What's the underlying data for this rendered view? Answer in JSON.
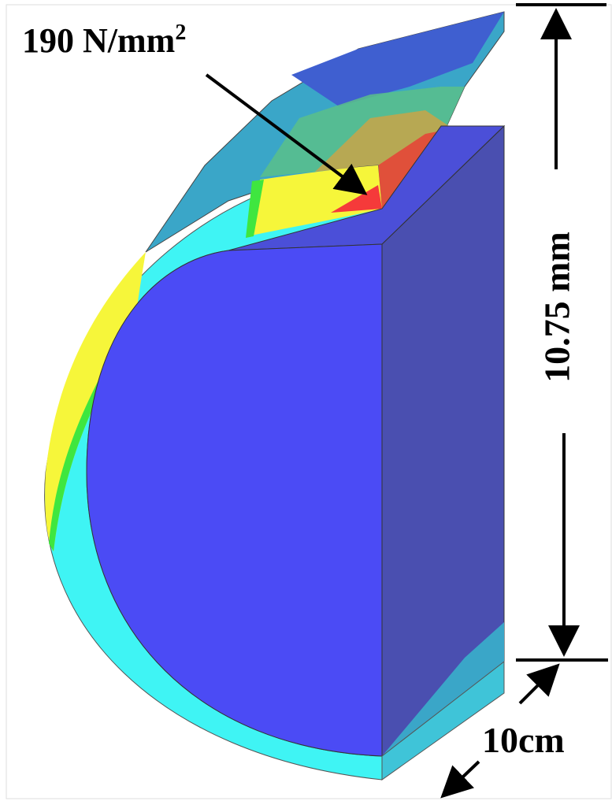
{
  "stress_label": {
    "text": "190 N/mm",
    "superscript": "2"
  },
  "height_label": "10.75 mm",
  "depth_label": "10cm"
}
